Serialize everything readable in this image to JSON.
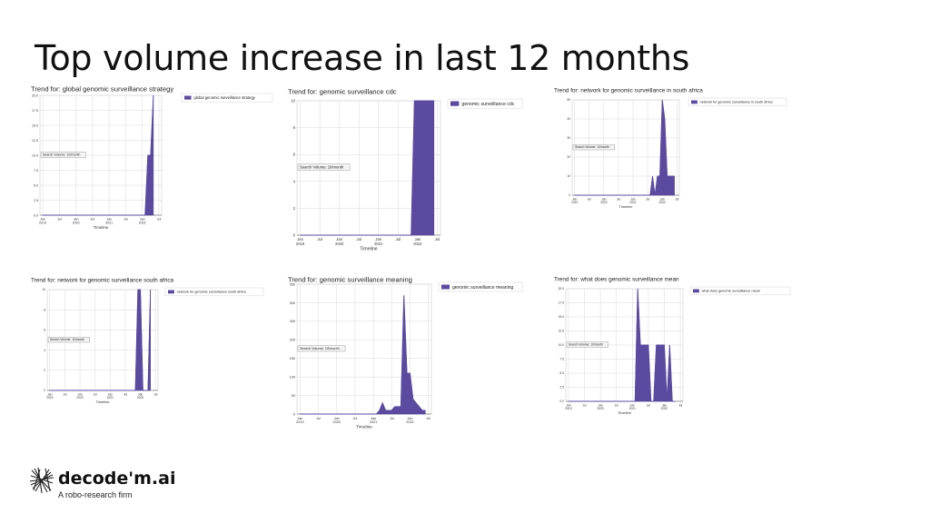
{
  "slide": {
    "title": "Top volume increase in last 12 months"
  },
  "brand": {
    "name": "decode'm.ai",
    "tagline": "A robo-research firm",
    "logo_icon": "tangled-lines-logo-icon"
  },
  "colors": {
    "series": "#5b4a9f",
    "grid": "#d9d9d9",
    "axis": "#555555"
  },
  "x_axis_ticks": {
    "main": [
      "Jan",
      "Jul",
      "Jan",
      "Jul",
      "Jan",
      "Jul",
      "Jan",
      "Jul"
    ],
    "years": [
      "2019",
      "",
      "2020",
      "",
      "2021",
      "",
      "2022",
      ""
    ],
    "dates": [
      "2019-01",
      "2019-07",
      "2020-01",
      "2020-07",
      "2021-01",
      "2021-07",
      "2022-01",
      "2022-07"
    ]
  },
  "chart_data": [
    {
      "type": "area",
      "title": "Trend for: global genomic surveillance strategy",
      "xlabel": "Timeline",
      "ylabel": "",
      "annotation": "Search Volume: 10/month",
      "ylim": [
        0,
        20
      ],
      "yticks": [
        "0.0",
        "2.5",
        "5.0",
        "7.5",
        "10.0",
        "12.5",
        "15.0",
        "17.5",
        "20.0"
      ],
      "legend": "top-right",
      "series": [
        {
          "name": "global genomic surveillance strategy",
          "x": [
            "2019-01",
            "2021-11",
            "2022-02",
            "2022-03",
            "2022-04",
            "2022-05"
          ],
          "values": [
            0,
            0,
            0,
            10,
            10,
            20
          ]
        }
      ]
    },
    {
      "type": "area",
      "title": "Trend for: genomic surveillance cdc",
      "xlabel": "Timeline",
      "ylabel": "",
      "annotation": "Search Volume: 10/month",
      "ylim": [
        0,
        10
      ],
      "yticks": [
        "0",
        "2",
        "4",
        "6",
        "8",
        "10"
      ],
      "legend": "top-right",
      "series": [
        {
          "name": "genomic surveillance cdc",
          "x": [
            "2019-01",
            "2021-11",
            "2021-12",
            "2022-06"
          ],
          "values": [
            0,
            0,
            10,
            10
          ]
        }
      ]
    },
    {
      "type": "area",
      "title": "Trend for: network for genomic surveillance in south africa",
      "xlabel": "Timeline",
      "ylabel": "",
      "annotation": "Search Volume: 10/month",
      "ylim": [
        0,
        50
      ],
      "yticks": [
        "0",
        "10",
        "20",
        "30",
        "40",
        "50"
      ],
      "legend": "top-right",
      "series": [
        {
          "name": "network for genomic surveillance in south africa",
          "x": [
            "2019-01",
            "2021-08",
            "2021-09",
            "2021-10",
            "2021-11",
            "2021-12",
            "2022-01",
            "2022-02",
            "2022-03",
            "2022-06"
          ],
          "values": [
            0,
            0,
            10,
            0,
            10,
            10,
            50,
            40,
            10,
            10
          ]
        }
      ]
    },
    {
      "type": "area",
      "title": "Trend for: network for genomic surveillance south africa",
      "xlabel": "Timeline",
      "ylabel": "",
      "annotation": "Search Volume: 10/month",
      "ylim": [
        0,
        10
      ],
      "yticks": [
        "0",
        "2",
        "4",
        "6",
        "8",
        "10"
      ],
      "legend": "top-right",
      "series": [
        {
          "name": "network for genomic surveillance south africa",
          "x": [
            "2019-01",
            "2021-11",
            "2021-12",
            "2022-01",
            "2022-02",
            "2022-04",
            "2022-05"
          ],
          "values": [
            0,
            0,
            10,
            10,
            0,
            0,
            10
          ]
        }
      ]
    },
    {
      "type": "area",
      "title": "Trend for: genomic surveillance meaning",
      "xlabel": "Timeline",
      "ylabel": "",
      "annotation": "Search Volume: 10/month",
      "ylim": [
        0,
        350
      ],
      "yticks": [
        "0",
        "50",
        "100",
        "150",
        "200",
        "250",
        "300",
        "350"
      ],
      "legend": "top-right",
      "series": [
        {
          "name": "genomic surveillance meaning",
          "x": [
            "2019-01",
            "2021-02",
            "2021-03",
            "2021-04",
            "2021-05",
            "2021-06",
            "2021-07",
            "2021-08",
            "2021-09",
            "2021-10",
            "2021-11",
            "2021-12",
            "2022-01",
            "2022-02",
            "2022-03",
            "2022-04",
            "2022-05",
            "2022-06"
          ],
          "values": [
            0,
            0,
            10,
            30,
            10,
            10,
            10,
            20,
            20,
            20,
            320,
            110,
            110,
            40,
            30,
            20,
            10,
            10
          ]
        }
      ]
    },
    {
      "type": "area",
      "title": "Trend for: what does genomic surveillance mean",
      "xlabel": "Timeline",
      "ylabel": "",
      "annotation": "Search Volume: 10/month",
      "ylim": [
        0,
        20
      ],
      "yticks": [
        "0.0",
        "2.5",
        "5.0",
        "7.5",
        "10.0",
        "12.5",
        "15.0",
        "17.5",
        "20.0"
      ],
      "legend": "top-right",
      "series": [
        {
          "name": "what does genomic surveillance mean",
          "x": [
            "2019-01",
            "2021-02",
            "2021-03",
            "2021-04",
            "2021-05",
            "2021-06",
            "2021-07",
            "2021-08",
            "2021-09",
            "2021-10",
            "2021-11",
            "2021-12",
            "2022-01",
            "2022-02",
            "2022-03",
            "2022-04",
            "2022-05"
          ],
          "values": [
            0,
            0,
            20,
            10,
            10,
            10,
            10,
            0,
            0,
            10,
            10,
            10,
            10,
            0,
            10,
            0,
            0
          ]
        }
      ]
    }
  ]
}
